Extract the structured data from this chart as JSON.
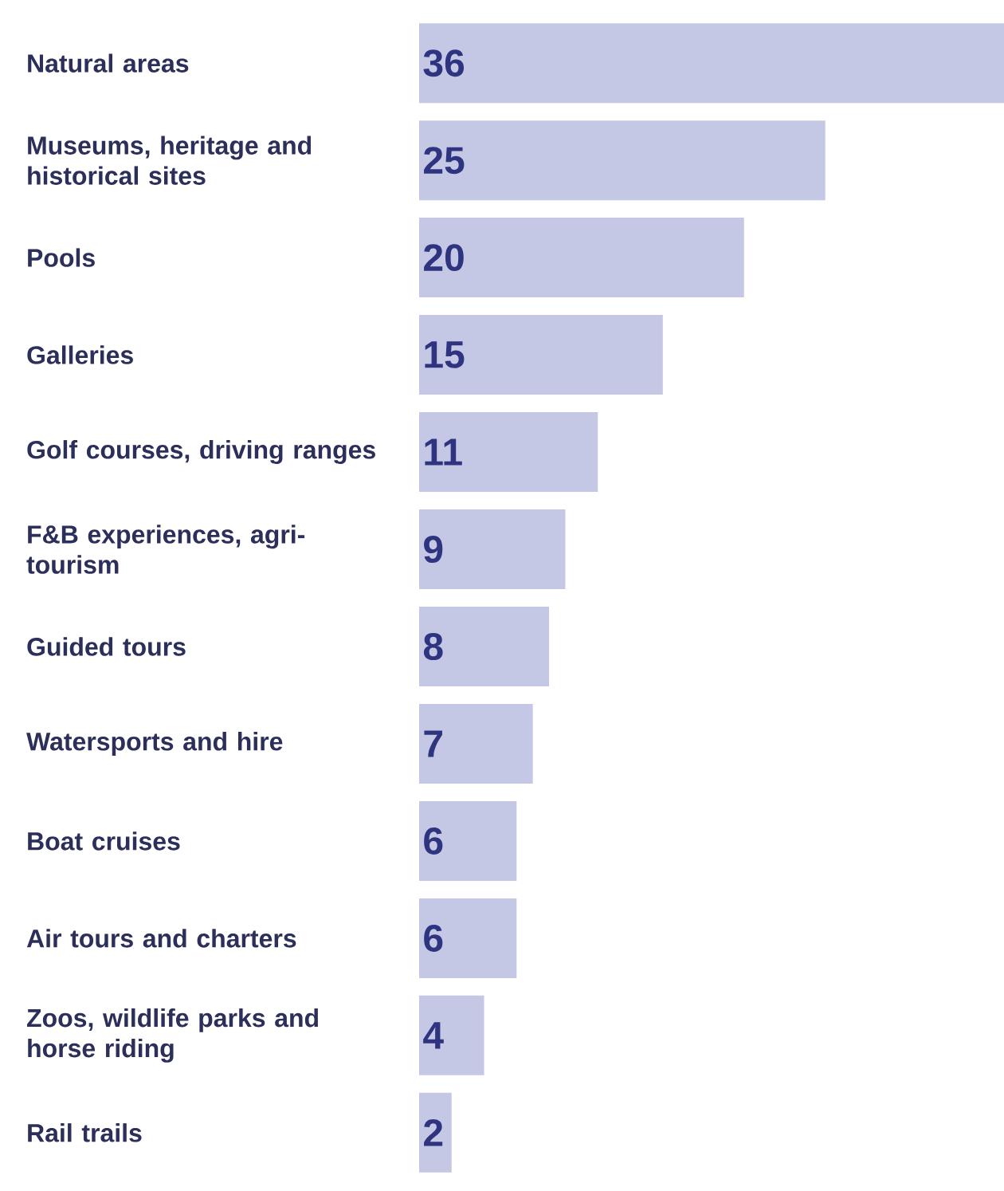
{
  "chart_data": {
    "type": "bar",
    "orientation": "horizontal",
    "categories": [
      "Natural areas",
      "Museums, heritage and historical sites",
      "Pools",
      "Galleries",
      "Golf courses, driving ranges",
      "F&B experiences, agri-tourism",
      "Guided tours",
      "Watersports and hire",
      "Boat cruises",
      "Air tours and charters",
      "Zoos, wildlife parks and horse riding",
      "Rail trails"
    ],
    "values": [
      36,
      25,
      20,
      15,
      11,
      9,
      8,
      7,
      6,
      6,
      4,
      2
    ],
    "color": "#c5c8e4",
    "data_labels": true
  }
}
